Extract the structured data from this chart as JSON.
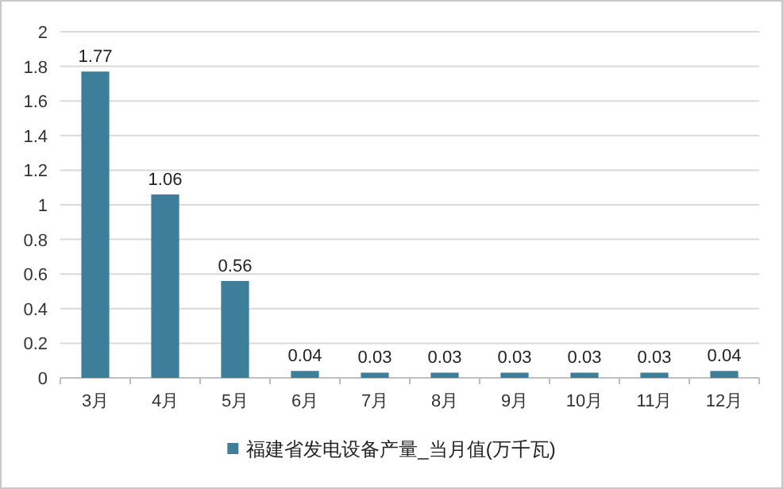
{
  "chart_data": {
    "type": "bar",
    "categories": [
      "3月",
      "4月",
      "5月",
      "6月",
      "7月",
      "8月",
      "9月",
      "10月",
      "11月",
      "12月"
    ],
    "series": [
      {
        "name": "福建省发电设备产量_当月值(万千瓦)",
        "color": "#3d7f9b",
        "values": [
          1.77,
          1.06,
          0.56,
          0.04,
          0.03,
          0.03,
          0.03,
          0.03,
          0.03,
          0.04
        ]
      }
    ],
    "ylim": [
      0,
      2
    ],
    "yticks": [
      0,
      0.2,
      0.4,
      0.6,
      0.8,
      1,
      1.2,
      1.4,
      1.6,
      1.8,
      2
    ],
    "grid": "y",
    "legend": "bottom",
    "data_labels": true
  }
}
